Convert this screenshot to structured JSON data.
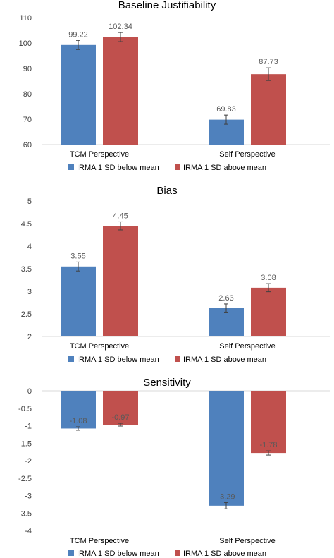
{
  "chart_data": [
    {
      "type": "bar",
      "title": "Baseline Justifiability",
      "categories": [
        "TCM Perspective",
        "Self Perspective"
      ],
      "series": [
        {
          "name": "IRMA 1 SD below mean",
          "values": [
            99.22,
            69.83
          ],
          "errors": [
            1.8,
            1.8
          ],
          "labels": [
            "99.22",
            "69.83"
          ]
        },
        {
          "name": "IRMA 1 SD above mean",
          "values": [
            102.34,
            87.73
          ],
          "errors": [
            1.8,
            2.5
          ],
          "labels": [
            "102.34",
            "87.73"
          ]
        }
      ],
      "ylim": [
        60,
        110
      ],
      "yticks": [
        60,
        70,
        80,
        90,
        100,
        110
      ],
      "ytick_labels": [
        "60",
        "70",
        "80",
        "90",
        "100",
        "110"
      ],
      "grid": false,
      "legend": "bottom"
    },
    {
      "type": "bar",
      "title": "Bias",
      "categories": [
        "TCM Perspective",
        "Self Perspective"
      ],
      "series": [
        {
          "name": "IRMA 1 SD below mean",
          "values": [
            3.55,
            2.63
          ],
          "errors": [
            0.1,
            0.09
          ],
          "labels": [
            "3.55",
            "2.63"
          ]
        },
        {
          "name": "IRMA 1 SD above mean",
          "values": [
            4.45,
            3.08
          ],
          "errors": [
            0.09,
            0.09
          ],
          "labels": [
            "4.45",
            "3.08"
          ]
        }
      ],
      "ylim": [
        2,
        5
      ],
      "yticks": [
        2,
        2.5,
        3,
        3.5,
        4,
        4.5,
        5
      ],
      "ytick_labels": [
        "2",
        "2.5",
        "3",
        "3.5",
        "4",
        "4.5",
        "5"
      ],
      "grid": false,
      "legend": "bottom"
    },
    {
      "type": "bar",
      "title": "Sensitivity",
      "categories": [
        "TCM Perspective",
        "Self Perspective"
      ],
      "series": [
        {
          "name": "IRMA 1 SD below mean",
          "values": [
            -1.08,
            -3.29
          ],
          "errors": [
            0.05,
            0.09
          ],
          "labels": [
            "-1.08",
            "-3.29"
          ]
        },
        {
          "name": "IRMA 1 SD above mean",
          "values": [
            -0.97,
            -1.78
          ],
          "errors": [
            0.04,
            0.06
          ],
          "labels": [
            "-0.97",
            "-1.78"
          ]
        }
      ],
      "ylim": [
        -4,
        0
      ],
      "yticks": [
        -4,
        -3.5,
        -3,
        -2.5,
        -2,
        -1.5,
        -1,
        -0.5,
        0
      ],
      "ytick_labels": [
        "-4",
        "-3.5",
        "-3",
        "-2.5",
        "-2",
        "-1.5",
        "-1",
        "-0.5",
        "0"
      ],
      "grid": false,
      "legend": "bottom"
    }
  ],
  "colors": {
    "series_below": "#4f81bd",
    "series_above": "#c0504d",
    "axis": "#d9d9d9",
    "text": "#404040",
    "data_label": "#595959",
    "error_bar": "#404040"
  }
}
